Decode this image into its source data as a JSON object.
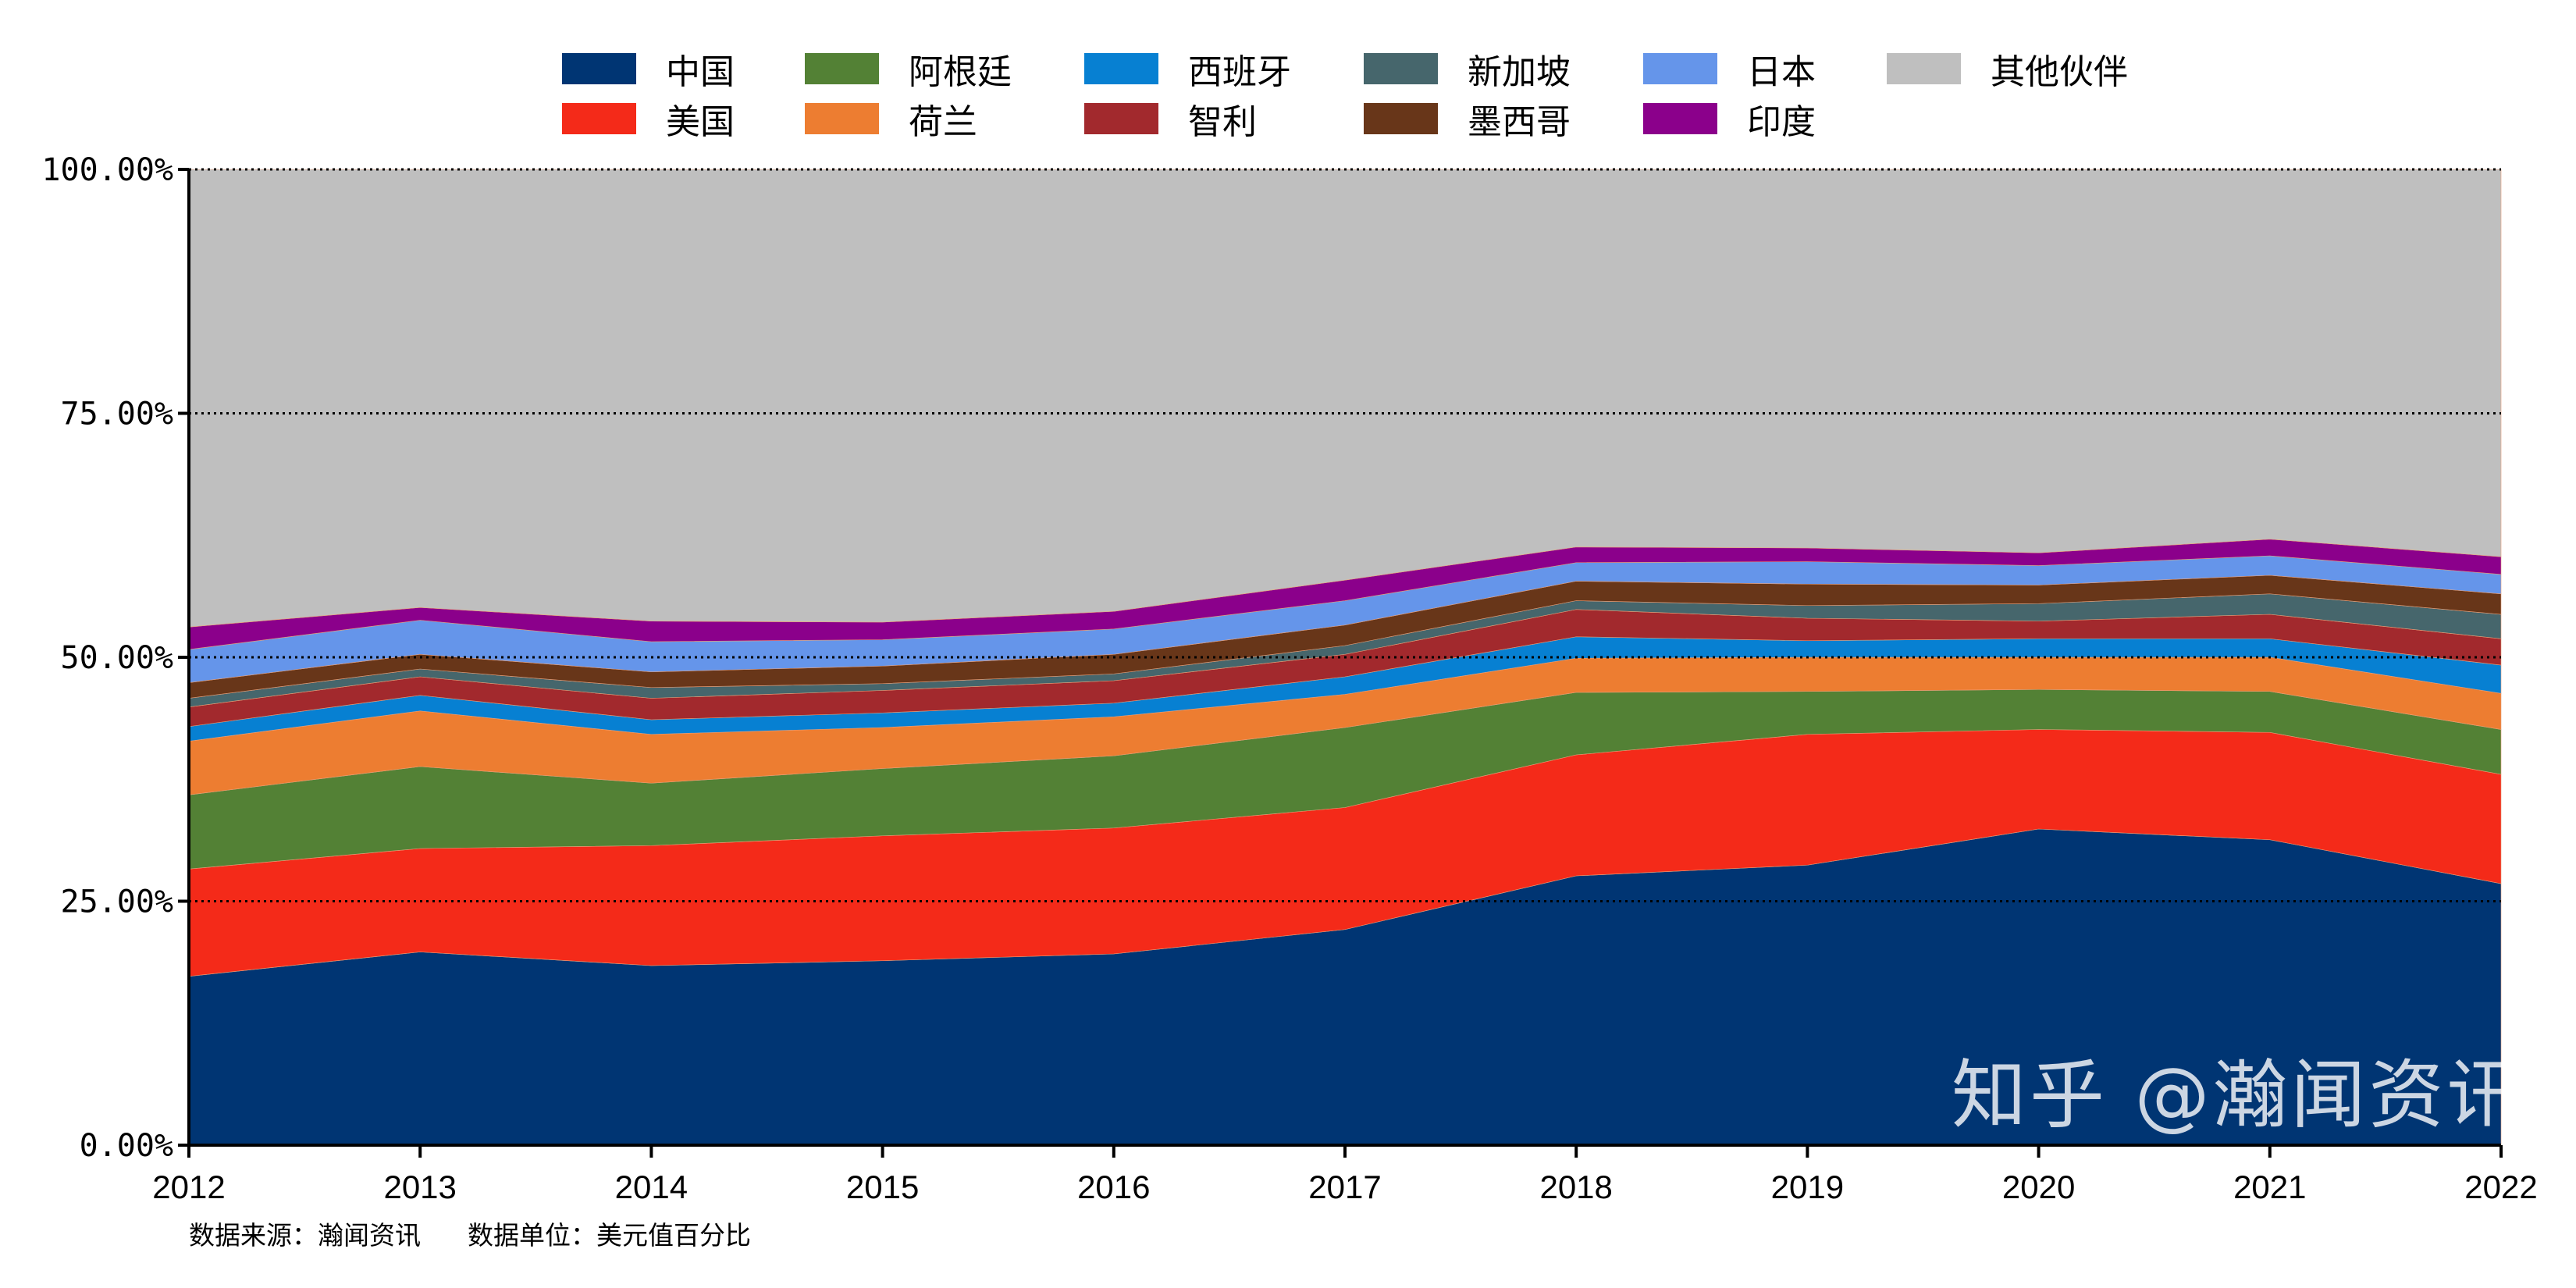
{
  "chart_data": {
    "type": "area",
    "stacked": true,
    "percent": true,
    "x": [
      "2012",
      "2013",
      "2014",
      "2015",
      "2016",
      "2017",
      "2018",
      "2019",
      "2020",
      "2021",
      "2022"
    ],
    "ylim": [
      0,
      100
    ],
    "yticks": [
      "0.00%",
      "25.00%",
      "50.00%",
      "75.00%",
      "100.00%"
    ],
    "grid": "horizontal dotted",
    "legend_position": "top",
    "series": [
      {
        "name": "中国",
        "color": "#003573",
        "values": [
          17.3,
          19.8,
          18.4,
          18.9,
          19.6,
          22.1,
          27.6,
          28.7,
          32.4,
          31.3,
          26.8
        ]
      },
      {
        "name": "美国",
        "color": "#F42A19",
        "values": [
          11.0,
          10.6,
          12.3,
          12.8,
          12.9,
          12.5,
          12.4,
          13.4,
          10.2,
          11.0,
          11.2
        ]
      },
      {
        "name": "阿根廷",
        "color": "#538135",
        "values": [
          7.6,
          8.4,
          6.4,
          6.9,
          7.4,
          8.2,
          6.4,
          4.4,
          4.1,
          4.2,
          4.6
        ]
      },
      {
        "name": "荷兰",
        "color": "#ED7D31",
        "values": [
          5.5,
          5.7,
          5.0,
          4.2,
          4.0,
          3.4,
          3.5,
          3.5,
          3.3,
          3.5,
          3.7
        ]
      },
      {
        "name": "西班牙",
        "color": "#0780D2",
        "values": [
          1.5,
          1.6,
          1.5,
          1.5,
          1.4,
          1.8,
          2.2,
          1.7,
          1.9,
          1.9,
          2.9
        ]
      },
      {
        "name": "智利",
        "color": "#A2292D",
        "values": [
          2.0,
          1.9,
          2.2,
          2.3,
          2.3,
          2.3,
          2.8,
          2.3,
          1.8,
          2.5,
          2.7
        ]
      },
      {
        "name": "新加坡",
        "color": "#46666C",
        "values": [
          0.9,
          0.8,
          1.1,
          0.7,
          0.7,
          0.9,
          0.9,
          1.3,
          1.8,
          2.1,
          2.5
        ]
      },
      {
        "name": "墨西哥",
        "color": "#683619",
        "values": [
          1.6,
          1.5,
          1.6,
          1.8,
          2.0,
          2.1,
          2.0,
          2.2,
          1.9,
          1.9,
          2.1
        ]
      },
      {
        "name": "日本",
        "color": "#6595EA",
        "values": [
          3.4,
          3.5,
          3.1,
          2.7,
          2.6,
          2.5,
          1.9,
          2.3,
          2.0,
          2.0,
          2.0
        ]
      },
      {
        "name": "印度",
        "color": "#8B008B",
        "values": [
          2.3,
          1.3,
          2.1,
          1.8,
          1.8,
          2.1,
          1.6,
          1.4,
          1.3,
          1.7,
          1.8
        ]
      },
      {
        "name": "其他伙伴",
        "color": "#BFBFBF",
        "values": [
          46.9,
          44.9,
          46.3,
          46.4,
          45.3,
          42.1,
          38.7,
          38.8,
          39.3,
          37.9,
          39.7
        ]
      }
    ]
  },
  "footer": {
    "source": "数据来源：瀚闻资讯",
    "unit": "数据单位：美元值百分比"
  },
  "watermark": "知乎 @瀚闻资讯"
}
